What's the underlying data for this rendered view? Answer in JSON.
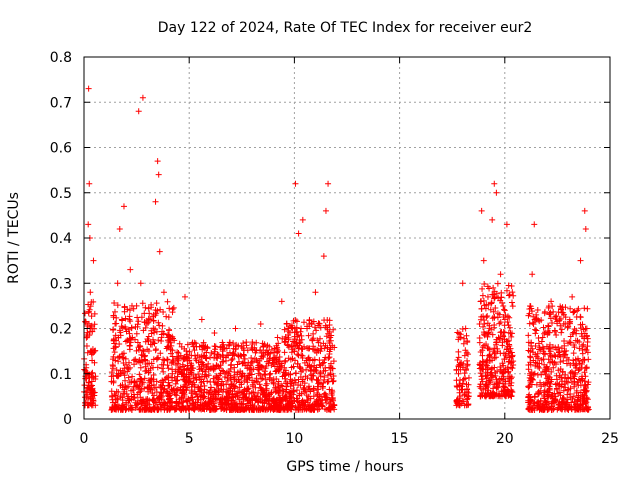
{
  "chart_data": {
    "type": "scatter",
    "title": "Day 122 of 2024, Rate Of TEC Index for receiver eur2",
    "xlabel": "GPS time / hours",
    "ylabel": "ROTI / TECUs",
    "xlim": [
      0,
      25
    ],
    "ylim": [
      0,
      0.8
    ],
    "xticks": [
      "0",
      "5",
      "10",
      "15",
      "20",
      "25"
    ],
    "yticks": [
      "0",
      "0.1",
      "0.2",
      "0.3",
      "0.4",
      "0.5",
      "0.6",
      "0.7",
      "0.8"
    ],
    "grid": true,
    "marker": "plus",
    "color": "#ff0000",
    "series": [
      {
        "points": [
          [
            0.05,
            0.03
          ],
          [
            0.1,
            0.12
          ],
          [
            0.15,
            0.2
          ],
          [
            0.2,
            0.43
          ],
          [
            0.22,
            0.73
          ],
          [
            0.25,
            0.52
          ],
          [
            0.28,
            0.4
          ],
          [
            0.3,
            0.28
          ],
          [
            0.35,
            0.1
          ],
          [
            0.4,
            0.06
          ],
          [
            0.45,
            0.35
          ],
          [
            0.5,
            0.15
          ],
          [
            1.3,
            0.02
          ],
          [
            1.4,
            0.08
          ],
          [
            1.5,
            0.16
          ],
          [
            1.6,
            0.3
          ],
          [
            1.7,
            0.42
          ],
          [
            1.8,
            0.22
          ],
          [
            1.9,
            0.47
          ],
          [
            2.0,
            0.12
          ],
          [
            2.1,
            0.05
          ],
          [
            2.2,
            0.33
          ],
          [
            2.3,
            0.18
          ],
          [
            2.4,
            0.08
          ],
          [
            2.5,
            0.25
          ],
          [
            2.6,
            0.68
          ],
          [
            2.7,
            0.3
          ],
          [
            2.8,
            0.71
          ],
          [
            2.9,
            0.14
          ],
          [
            3.0,
            0.04
          ],
          [
            3.1,
            0.22
          ],
          [
            3.2,
            0.09
          ],
          [
            3.3,
            0.17
          ],
          [
            3.4,
            0.48
          ],
          [
            3.5,
            0.57
          ],
          [
            3.55,
            0.54
          ],
          [
            3.6,
            0.37
          ],
          [
            3.7,
            0.12
          ],
          [
            3.8,
            0.28
          ],
          [
            3.9,
            0.06
          ],
          [
            4.0,
            0.18
          ],
          [
            4.2,
            0.1
          ],
          [
            4.4,
            0.03
          ],
          [
            4.6,
            0.14
          ],
          [
            4.8,
            0.27
          ],
          [
            5.0,
            0.08
          ],
          [
            5.2,
            0.16
          ],
          [
            5.4,
            0.05
          ],
          [
            5.6,
            0.22
          ],
          [
            5.8,
            0.11
          ],
          [
            6.0,
            0.04
          ],
          [
            6.2,
            0.19
          ],
          [
            6.4,
            0.09
          ],
          [
            6.6,
            0.15
          ],
          [
            6.8,
            0.06
          ],
          [
            7.0,
            0.12
          ],
          [
            7.2,
            0.2
          ],
          [
            7.4,
            0.07
          ],
          [
            7.6,
            0.14
          ],
          [
            7.8,
            0.03
          ],
          [
            8.0,
            0.17
          ],
          [
            8.2,
            0.09
          ],
          [
            8.4,
            0.21
          ],
          [
            8.6,
            0.05
          ],
          [
            8.8,
            0.13
          ],
          [
            9.0,
            0.08
          ],
          [
            9.2,
            0.18
          ],
          [
            9.4,
            0.26
          ],
          [
            9.6,
            0.1
          ],
          [
            9.8,
            0.04
          ],
          [
            10.0,
            0.15
          ],
          [
            10.05,
            0.52
          ],
          [
            10.2,
            0.41
          ],
          [
            10.4,
            0.44
          ],
          [
            10.6,
            0.2
          ],
          [
            10.8,
            0.09
          ],
          [
            11.0,
            0.28
          ],
          [
            11.2,
            0.12
          ],
          [
            11.4,
            0.36
          ],
          [
            11.5,
            0.46
          ],
          [
            11.6,
            0.52
          ],
          [
            11.7,
            0.18
          ],
          [
            11.8,
            0.06
          ],
          [
            17.7,
            0.03
          ],
          [
            17.8,
            0.1
          ],
          [
            17.9,
            0.18
          ],
          [
            18.0,
            0.3
          ],
          [
            18.1,
            0.14
          ],
          [
            18.2,
            0.06
          ],
          [
            18.8,
            0.21
          ],
          [
            18.9,
            0.46
          ],
          [
            19.0,
            0.35
          ],
          [
            19.1,
            0.12
          ],
          [
            19.2,
            0.27
          ],
          [
            19.3,
            0.08
          ],
          [
            19.4,
            0.44
          ],
          [
            19.5,
            0.52
          ],
          [
            19.6,
            0.5
          ],
          [
            19.7,
            0.18
          ],
          [
            19.8,
            0.32
          ],
          [
            19.9,
            0.1
          ],
          [
            20.0,
            0.24
          ],
          [
            20.1,
            0.43
          ],
          [
            20.2,
            0.15
          ],
          [
            20.3,
            0.05
          ],
          [
            21.2,
            0.1
          ],
          [
            21.3,
            0.32
          ],
          [
            21.4,
            0.43
          ],
          [
            21.5,
            0.22
          ],
          [
            21.6,
            0.06
          ],
          [
            21.8,
            0.18
          ],
          [
            22.0,
            0.09
          ],
          [
            22.2,
            0.26
          ],
          [
            22.4,
            0.04
          ],
          [
            22.6,
            0.15
          ],
          [
            22.8,
            0.21
          ],
          [
            23.0,
            0.08
          ],
          [
            23.2,
            0.27
          ],
          [
            23.4,
            0.12
          ],
          [
            23.6,
            0.35
          ],
          [
            23.7,
            0.05
          ],
          [
            23.8,
            0.46
          ],
          [
            23.85,
            0.42
          ],
          [
            23.9,
            0.2
          ],
          [
            23.95,
            0.02
          ]
        ]
      }
    ],
    "clusters": [
      {
        "x0": 0.0,
        "x1": 0.55,
        "lo": 0.03,
        "hi": 0.26,
        "n": 110
      },
      {
        "x0": 1.3,
        "x1": 4.3,
        "lo": 0.02,
        "hi": 0.26,
        "n": 520
      },
      {
        "x0": 4.3,
        "x1": 9.4,
        "lo": 0.02,
        "hi": 0.17,
        "n": 900
      },
      {
        "x0": 9.4,
        "x1": 11.9,
        "lo": 0.02,
        "hi": 0.22,
        "n": 460
      },
      {
        "x0": 17.7,
        "x1": 18.3,
        "lo": 0.03,
        "hi": 0.2,
        "n": 90
      },
      {
        "x0": 18.8,
        "x1": 20.4,
        "lo": 0.05,
        "hi": 0.3,
        "n": 330
      },
      {
        "x0": 21.1,
        "x1": 24.0,
        "lo": 0.02,
        "hi": 0.25,
        "n": 560
      }
    ]
  }
}
